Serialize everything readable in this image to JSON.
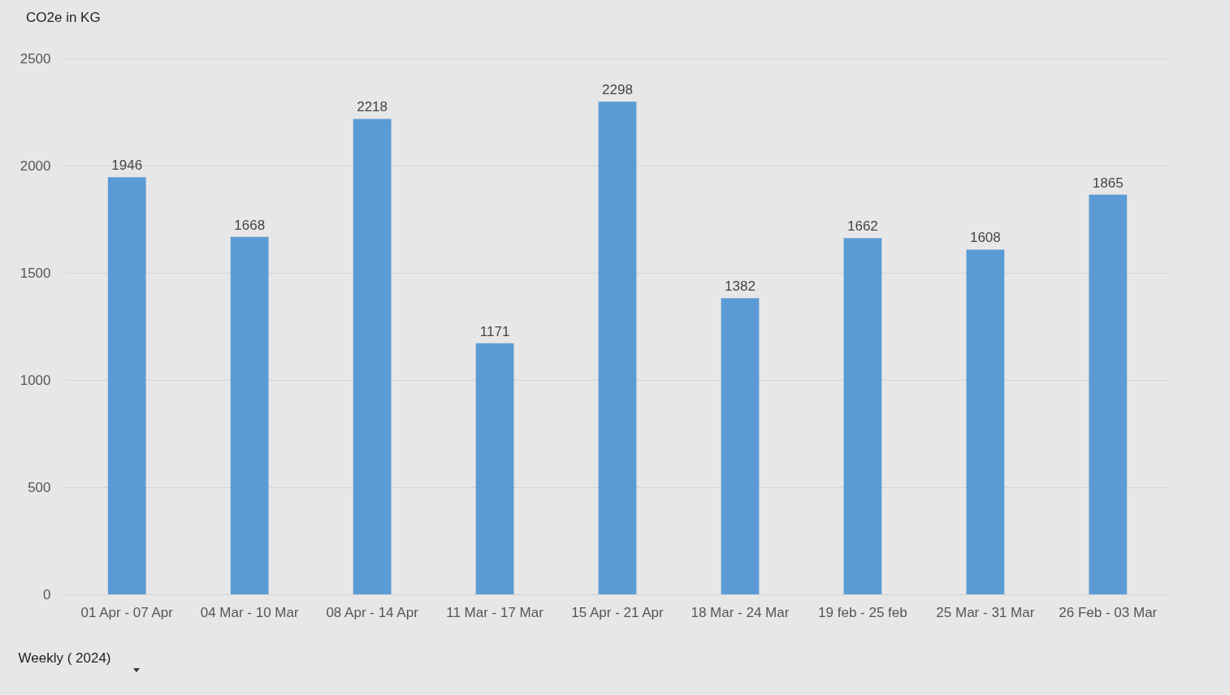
{
  "chart_data": {
    "type": "bar",
    "title": "CO2e in KG",
    "xlabel": "Weekly ( 2024)",
    "categories": [
      "01 Apr - 07 Apr",
      "04 Mar - 10 Mar",
      "08 Apr - 14 Apr",
      "11 Mar - 17 Mar",
      "15 Apr - 21 Apr",
      "18 Mar - 24 Mar",
      "19 feb - 25 feb",
      "25 Mar - 31 Mar",
      "26 Feb - 03 Mar"
    ],
    "values": [
      1946,
      1668,
      2218,
      1171,
      2298,
      1382,
      1662,
      1608,
      1865
    ],
    "color": "#5b9bd5",
    "ylim": [
      0,
      2500
    ],
    "yticks": [
      0,
      500,
      1000,
      1500,
      2000,
      2500
    ],
    "grid": "y",
    "data_labels": true
  }
}
